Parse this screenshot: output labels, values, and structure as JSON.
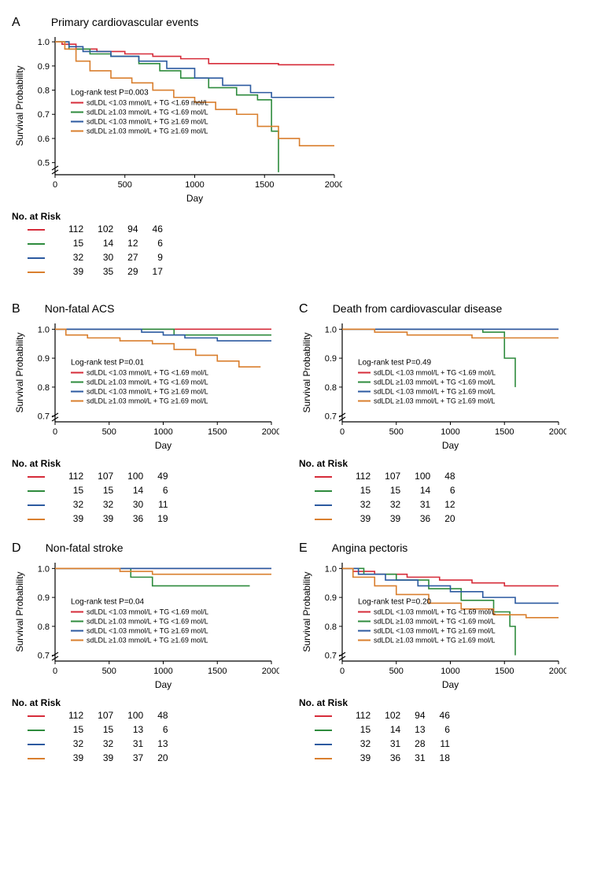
{
  "colors": {
    "red": "#d62c3a",
    "green": "#2e8b3d",
    "blue": "#2c5aa0",
    "orange": "#d97f2e",
    "axis": "#000000",
    "bg": "#ffffff"
  },
  "font_sizes": {
    "panel_label": 16,
    "panel_title": 14,
    "axis_label": 12,
    "tick": 11,
    "legend": 9,
    "risk_header": 12,
    "risk_table": 12
  },
  "legend_labels": {
    "red": "sdLDL <1.03 mmol/L + TG <1.69 mol/L",
    "green": "sdLDL ≥1.03 mmol/L + TG <1.69 mol/L",
    "blue": "sdLDL <1.03 mmol/L + TG ≥1.69 mol/L",
    "orange": "sdLDL ≥1.03 mmol/L + TG ≥1.69 mol/L"
  },
  "axis": {
    "x_label": "Day",
    "y_label": "Survival Probability",
    "x_ticks": [
      0,
      500,
      1000,
      1500,
      2000
    ],
    "y_ticks_full": [
      0.5,
      0.6,
      0.7,
      0.8,
      0.9,
      1.0
    ],
    "y_ticks_short": [
      0.7,
      0.8,
      0.9,
      1.0
    ],
    "y_ticks_tiny": [
      0.9,
      1.0
    ],
    "xlim": [
      0,
      2000
    ]
  },
  "panels": {
    "A": {
      "label": "A",
      "title": "Primary cardiovascular events",
      "pvalue": "Log-rank test P=0.003",
      "ylim": [
        0.45,
        1.02
      ],
      "series": {
        "red": [
          [
            0,
            1.0
          ],
          [
            50,
            0.99
          ],
          [
            150,
            0.97
          ],
          [
            300,
            0.96
          ],
          [
            500,
            0.95
          ],
          [
            700,
            0.94
          ],
          [
            900,
            0.93
          ],
          [
            1100,
            0.91
          ],
          [
            1300,
            0.91
          ],
          [
            1600,
            0.905
          ],
          [
            2000,
            0.905
          ]
        ],
        "green": [
          [
            0,
            1.0
          ],
          [
            100,
            0.97
          ],
          [
            250,
            0.95
          ],
          [
            400,
            0.94
          ],
          [
            600,
            0.91
          ],
          [
            750,
            0.88
          ],
          [
            900,
            0.85
          ],
          [
            1100,
            0.81
          ],
          [
            1300,
            0.78
          ],
          [
            1450,
            0.76
          ],
          [
            1550,
            0.63
          ],
          [
            1600,
            0.46
          ]
        ],
        "blue": [
          [
            0,
            1.0
          ],
          [
            100,
            0.98
          ],
          [
            200,
            0.96
          ],
          [
            400,
            0.94
          ],
          [
            600,
            0.92
          ],
          [
            800,
            0.89
          ],
          [
            1000,
            0.85
          ],
          [
            1200,
            0.82
          ],
          [
            1400,
            0.79
          ],
          [
            1550,
            0.77
          ],
          [
            2000,
            0.77
          ]
        ],
        "orange": [
          [
            0,
            1.0
          ],
          [
            70,
            0.97
          ],
          [
            150,
            0.92
          ],
          [
            250,
            0.88
          ],
          [
            400,
            0.85
          ],
          [
            550,
            0.83
          ],
          [
            700,
            0.8
          ],
          [
            850,
            0.77
          ],
          [
            1000,
            0.75
          ],
          [
            1150,
            0.72
          ],
          [
            1300,
            0.7
          ],
          [
            1450,
            0.65
          ],
          [
            1600,
            0.6
          ],
          [
            1750,
            0.57
          ],
          [
            2000,
            0.57
          ]
        ]
      },
      "risk_header": "No. at Risk",
      "risk": {
        "red": [
          112,
          102,
          94,
          46
        ],
        "green": [
          15,
          14,
          12,
          6
        ],
        "blue": [
          32,
          30,
          27,
          9
        ],
        "orange": [
          39,
          35,
          29,
          17
        ]
      }
    },
    "B": {
      "label": "B",
      "title": "Non-fatal ACS",
      "pvalue": "Log-rank test P=0.01",
      "ylim": [
        0.68,
        1.02
      ],
      "series": {
        "red": [
          [
            0,
            1.0
          ],
          [
            400,
            1.0
          ],
          [
            800,
            1.0
          ],
          [
            1200,
            1.0
          ],
          [
            1600,
            1.0
          ],
          [
            2000,
            1.0
          ]
        ],
        "green": [
          [
            0,
            1.0
          ],
          [
            600,
            1.0
          ],
          [
            900,
            1.0
          ],
          [
            1100,
            0.98
          ],
          [
            1400,
            0.98
          ],
          [
            1800,
            0.98
          ],
          [
            2000,
            0.98
          ]
        ],
        "blue": [
          [
            0,
            1.0
          ],
          [
            500,
            1.0
          ],
          [
            800,
            0.99
          ],
          [
            1000,
            0.98
          ],
          [
            1200,
            0.97
          ],
          [
            1500,
            0.96
          ],
          [
            2000,
            0.96
          ]
        ],
        "orange": [
          [
            0,
            1.0
          ],
          [
            100,
            0.98
          ],
          [
            300,
            0.97
          ],
          [
            600,
            0.96
          ],
          [
            900,
            0.95
          ],
          [
            1100,
            0.93
          ],
          [
            1300,
            0.91
          ],
          [
            1500,
            0.89
          ],
          [
            1700,
            0.87
          ],
          [
            1900,
            0.87
          ]
        ]
      },
      "risk_header": "No. at Risk",
      "risk": {
        "red": [
          112,
          107,
          100,
          49
        ],
        "green": [
          15,
          15,
          14,
          6
        ],
        "blue": [
          32,
          32,
          30,
          11
        ],
        "orange": [
          39,
          39,
          36,
          19
        ]
      }
    },
    "C": {
      "label": "C",
      "title": "Death from cardiovascular disease",
      "pvalue": "Log-rank test P=0.49",
      "ylim": [
        0.68,
        1.02
      ],
      "series": {
        "red": [
          [
            0,
            1.0
          ],
          [
            500,
            1.0
          ],
          [
            1000,
            1.0
          ],
          [
            1500,
            1.0
          ],
          [
            2000,
            1.0
          ]
        ],
        "green": [
          [
            0,
            1.0
          ],
          [
            600,
            1.0
          ],
          [
            1000,
            1.0
          ],
          [
            1300,
            0.99
          ],
          [
            1500,
            0.9
          ],
          [
            1600,
            0.8
          ]
        ],
        "blue": [
          [
            0,
            1.0
          ],
          [
            500,
            1.0
          ],
          [
            1000,
            1.0
          ],
          [
            1500,
            1.0
          ],
          [
            2000,
            1.0
          ]
        ],
        "orange": [
          [
            0,
            1.0
          ],
          [
            300,
            0.99
          ],
          [
            600,
            0.98
          ],
          [
            900,
            0.98
          ],
          [
            1200,
            0.97
          ],
          [
            1600,
            0.97
          ],
          [
            2000,
            0.97
          ]
        ]
      },
      "risk_header": "No. at Risk",
      "risk": {
        "red": [
          112,
          107,
          100,
          48
        ],
        "green": [
          15,
          15,
          14,
          6
        ],
        "blue": [
          32,
          32,
          31,
          12
        ],
        "orange": [
          39,
          39,
          36,
          20
        ]
      }
    },
    "D": {
      "label": "D",
      "title": "Non-fatal stroke",
      "pvalue": "Log-rank test P=0.04",
      "ylim": [
        0.68,
        1.02
      ],
      "series": {
        "red": [
          [
            0,
            1.0
          ],
          [
            500,
            1.0
          ],
          [
            1000,
            1.0
          ],
          [
            1500,
            1.0
          ],
          [
            2000,
            1.0
          ]
        ],
        "green": [
          [
            0,
            1.0
          ],
          [
            400,
            1.0
          ],
          [
            700,
            0.97
          ],
          [
            900,
            0.94
          ],
          [
            1300,
            0.94
          ],
          [
            1800,
            0.94
          ]
        ],
        "blue": [
          [
            0,
            1.0
          ],
          [
            500,
            1.0
          ],
          [
            1000,
            1.0
          ],
          [
            1500,
            1.0
          ],
          [
            2000,
            1.0
          ]
        ],
        "orange": [
          [
            0,
            1.0
          ],
          [
            300,
            1.0
          ],
          [
            600,
            0.99
          ],
          [
            900,
            0.98
          ],
          [
            1200,
            0.98
          ],
          [
            1600,
            0.98
          ],
          [
            2000,
            0.98
          ]
        ]
      },
      "risk_header": "No. at Risk",
      "risk": {
        "red": [
          112,
          107,
          100,
          48
        ],
        "green": [
          15,
          15,
          13,
          6
        ],
        "blue": [
          32,
          32,
          31,
          13
        ],
        "orange": [
          39,
          39,
          37,
          20
        ]
      }
    },
    "E": {
      "label": "E",
      "title": "Angina pectoris",
      "pvalue": "Log-rank test P=0.20",
      "ylim": [
        0.68,
        1.02
      ],
      "series": {
        "red": [
          [
            0,
            1.0
          ],
          [
            100,
            0.99
          ],
          [
            300,
            0.98
          ],
          [
            600,
            0.97
          ],
          [
            900,
            0.96
          ],
          [
            1200,
            0.95
          ],
          [
            1500,
            0.94
          ],
          [
            2000,
            0.94
          ]
        ],
        "green": [
          [
            0,
            1.0
          ],
          [
            200,
            0.98
          ],
          [
            500,
            0.96
          ],
          [
            800,
            0.93
          ],
          [
            1100,
            0.89
          ],
          [
            1400,
            0.85
          ],
          [
            1550,
            0.8
          ],
          [
            1600,
            0.7
          ]
        ],
        "blue": [
          [
            0,
            1.0
          ],
          [
            150,
            0.98
          ],
          [
            400,
            0.96
          ],
          [
            700,
            0.94
          ],
          [
            1000,
            0.92
          ],
          [
            1300,
            0.9
          ],
          [
            1600,
            0.88
          ],
          [
            2000,
            0.88
          ]
        ],
        "orange": [
          [
            0,
            1.0
          ],
          [
            100,
            0.97
          ],
          [
            300,
            0.94
          ],
          [
            500,
            0.91
          ],
          [
            800,
            0.88
          ],
          [
            1100,
            0.86
          ],
          [
            1400,
            0.84
          ],
          [
            1700,
            0.83
          ],
          [
            2000,
            0.83
          ]
        ]
      },
      "risk_header": "No. at Risk",
      "risk": {
        "red": [
          112,
          102,
          94,
          46
        ],
        "green": [
          15,
          14,
          13,
          6
        ],
        "blue": [
          32,
          31,
          28,
          11
        ],
        "orange": [
          39,
          36,
          31,
          18
        ]
      }
    }
  }
}
